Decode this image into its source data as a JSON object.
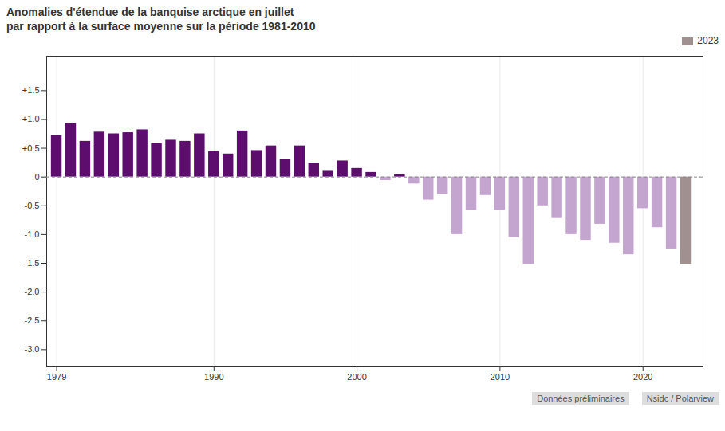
{
  "chart_data": {
    "type": "bar",
    "title": "Anomalies d'étendue de la banquise arctique en juillet\npar rapport à la surface moyenne sur la période 1981-2010",
    "x": [
      1979,
      1980,
      1981,
      1982,
      1983,
      1984,
      1985,
      1986,
      1987,
      1988,
      1989,
      1990,
      1991,
      1992,
      1993,
      1994,
      1995,
      1996,
      1997,
      1998,
      1999,
      2000,
      2001,
      2002,
      2003,
      2004,
      2005,
      2006,
      2007,
      2008,
      2009,
      2010,
      2011,
      2012,
      2013,
      2014,
      2015,
      2016,
      2017,
      2018,
      2019,
      2020,
      2021,
      2022,
      2023
    ],
    "series": [
      {
        "values": [
          0.72,
          0.93,
          0.62,
          0.78,
          0.75,
          0.77,
          0.82,
          0.58,
          0.64,
          0.62,
          0.75,
          0.44,
          0.4,
          0.8,
          0.46,
          0.54,
          0.3,
          0.54,
          0.24,
          0.1,
          0.28,
          0.15,
          0.08,
          -0.06,
          0.04,
          -0.12,
          -0.4,
          -0.3,
          -1.0,
          -0.58,
          -0.32,
          -0.58,
          -1.05,
          -1.52,
          -0.5,
          -0.72,
          -1.0,
          -1.1,
          -0.82,
          -1.15,
          -1.35,
          -0.55,
          -0.88,
          -1.25,
          null
        ],
        "colors": [
          "#5c0d6e",
          "#5c0d6e",
          "#5c0d6e",
          "#5c0d6e",
          "#5c0d6e",
          "#5c0d6e",
          "#5c0d6e",
          "#5c0d6e",
          "#5c0d6e",
          "#5c0d6e",
          "#5c0d6e",
          "#5c0d6e",
          "#5c0d6e",
          "#5c0d6e",
          "#5c0d6e",
          "#5c0d6e",
          "#5c0d6e",
          "#5c0d6e",
          "#5c0d6e",
          "#5c0d6e",
          "#5c0d6e",
          "#5c0d6e",
          "#5c0d6e",
          "#c4a5d0",
          "#5c0d6e",
          "#c4a5d0",
          "#c4a5d0",
          "#c4a5d0",
          "#c4a5d0",
          "#c4a5d0",
          "#c4a5d0",
          "#c4a5d0",
          "#c4a5d0",
          "#c4a5d0",
          "#c4a5d0",
          "#c4a5d0",
          "#c4a5d0",
          "#c4a5d0",
          "#c4a5d0",
          "#c4a5d0",
          "#c4a5d0",
          "#c4a5d0",
          "#c4a5d0",
          "#c4a5d0",
          null
        ]
      },
      {
        "name": "2023",
        "color": "#a09090",
        "values": [
          null,
          null,
          null,
          null,
          null,
          null,
          null,
          null,
          null,
          null,
          null,
          null,
          null,
          null,
          null,
          null,
          null,
          null,
          null,
          null,
          null,
          null,
          null,
          null,
          null,
          null,
          null,
          null,
          null,
          null,
          null,
          null,
          null,
          null,
          null,
          null,
          null,
          null,
          null,
          null,
          null,
          null,
          null,
          null,
          -1.52
        ]
      }
    ],
    "xlim": [
      1978.3,
      2024.2
    ],
    "xticks": [
      1979,
      1990,
      2000,
      2010,
      2020
    ],
    "ylim": [
      -3.3,
      2.1
    ],
    "yticks": [
      {
        "value": 1.5,
        "label": "+1.5"
      },
      {
        "value": 1.0,
        "label": "+1.0"
      },
      {
        "value": 0.5,
        "label": "+0.5"
      },
      0,
      -0.5,
      {
        "value": -1.0,
        "label": "-1.0"
      },
      -1.5,
      {
        "value": -2.0,
        "label": "-2.0"
      },
      -2.5,
      {
        "value": -3.0,
        "label": "-3.0"
      }
    ],
    "grid": "x",
    "legend": "upper right",
    "annotations": [
      "Données préliminaires",
      "Nsidc / Polarview"
    ]
  }
}
